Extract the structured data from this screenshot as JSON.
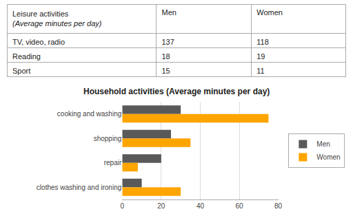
{
  "chart_data": [
    {
      "type": "table",
      "title": "Leisure activities",
      "subtitle": "(Average minutes per day)",
      "categories": [
        "TV, video, radio",
        "Reading",
        "Sport"
      ],
      "series": [
        {
          "name": "Men",
          "values": [
            137,
            18,
            15
          ]
        },
        {
          "name": "Women",
          "values": [
            118,
            19,
            11
          ]
        }
      ]
    },
    {
      "type": "bar",
      "orientation": "horizontal",
      "title": "Household activities (Average minutes per day)",
      "categories": [
        "cooking and washing",
        "shopping",
        "repair",
        "clothes washing and ironing"
      ],
      "series": [
        {
          "name": "Men",
          "color": "#595959",
          "values": [
            30,
            25,
            20,
            10
          ]
        },
        {
          "name": "Women",
          "color": "#FFA500",
          "values": [
            75,
            35,
            8,
            30
          ]
        }
      ],
      "xlim": [
        0,
        80
      ],
      "xticks": [
        0,
        20,
        40,
        60,
        80
      ],
      "grid": true,
      "legend": "right"
    }
  ]
}
